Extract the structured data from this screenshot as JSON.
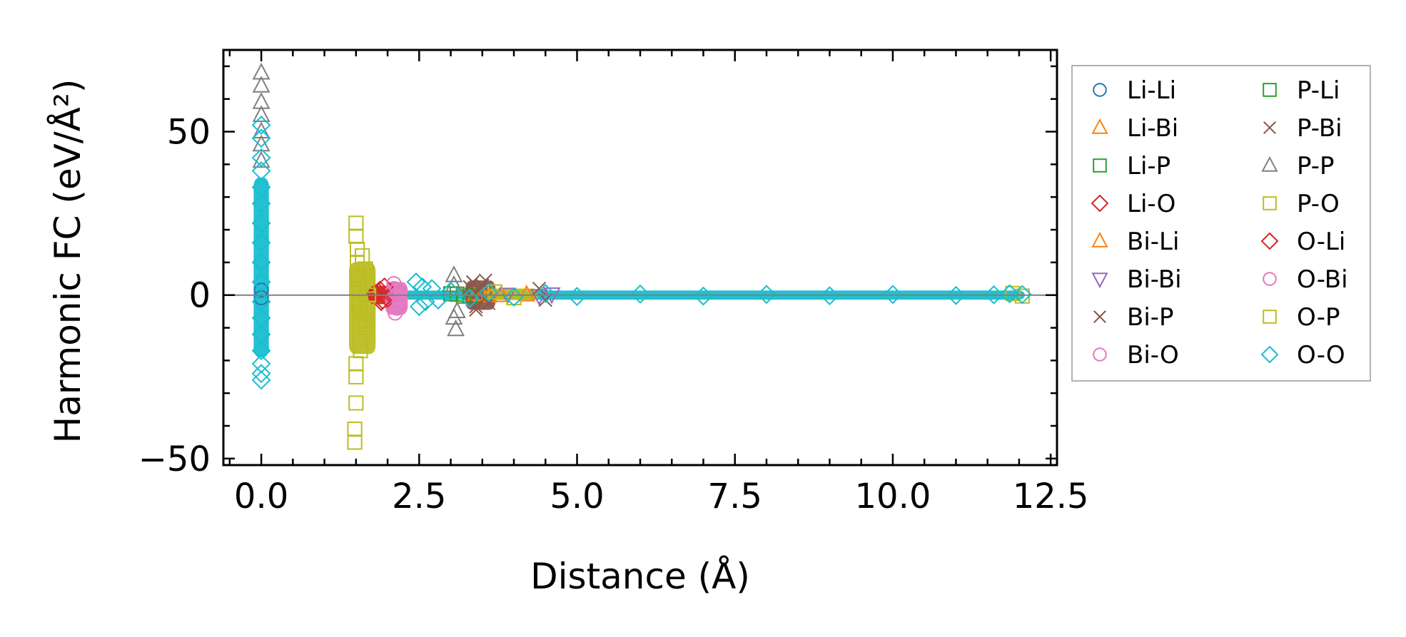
{
  "chart_data": {
    "type": "scatter",
    "title": "",
    "xlabel": "Distance (Å)",
    "ylabel": "Harmonic FC (eV/Å²)",
    "xlim": [
      -0.6,
      12.6
    ],
    "ylim": [
      -52,
      75
    ],
    "xticks": [
      0.0,
      2.5,
      5.0,
      7.5,
      10.0,
      12.5
    ],
    "xtick_labels": [
      "0.0",
      "2.5",
      "5.0",
      "7.5",
      "10.0",
      "12.5"
    ],
    "yticks": [
      -50,
      0,
      50
    ],
    "ytick_labels": [
      "−50",
      "0",
      "50"
    ],
    "grid": false,
    "zero_line": true,
    "legend_position": "outside-right",
    "series": [
      {
        "name": "Li-Li",
        "marker": "circle",
        "color": "#1f77b4",
        "points": [
          [
            0.0,
            1.5
          ],
          [
            0.0,
            -0.8
          ]
        ]
      },
      {
        "name": "Li-Bi",
        "marker": "triangle-up",
        "color": "#ff7f0e",
        "points": [
          [
            3.4,
            0.3
          ],
          [
            3.6,
            -0.2
          ],
          [
            4.2,
            0.1
          ]
        ]
      },
      {
        "name": "Li-P",
        "marker": "square",
        "color": "#2ca02c",
        "points": [
          [
            3.0,
            0.4
          ],
          [
            3.2,
            -0.3
          ]
        ]
      },
      {
        "name": "Li-O",
        "marker": "diamond",
        "color": "#d62728",
        "points": [
          [
            1.85,
            1.0
          ],
          [
            1.9,
            -2.0
          ],
          [
            1.95,
            2.5
          ],
          [
            2.0,
            -1.0
          ],
          [
            1.8,
            0.5
          ]
        ]
      },
      {
        "name": "Bi-Li",
        "marker": "triangle-up",
        "color": "#ff7f0e",
        "points": [
          [
            3.5,
            0.2
          ],
          [
            3.8,
            -0.1
          ]
        ]
      },
      {
        "name": "Bi-Bi",
        "marker": "triangle-down",
        "color": "#9467bd",
        "points": [
          [
            3.9,
            0.2
          ],
          [
            4.4,
            -0.2
          ],
          [
            4.6,
            0.3
          ]
        ]
      },
      {
        "name": "Bi-P",
        "marker": "x",
        "color": "#8c564b",
        "points": [
          [
            3.35,
            4.0
          ],
          [
            3.4,
            -4.5
          ],
          [
            3.5,
            3.0
          ],
          [
            3.6,
            -2.5
          ],
          [
            3.45,
            1.5
          ],
          [
            3.55,
            -1.0
          ],
          [
            4.4,
            2.0
          ],
          [
            4.5,
            -1.5
          ]
        ]
      },
      {
        "name": "Bi-O",
        "marker": "circle",
        "color": "#e377c2",
        "points": [
          [
            2.1,
            3.5
          ],
          [
            2.12,
            -5.5
          ],
          [
            2.15,
            1.5
          ],
          [
            2.18,
            -3.0
          ],
          [
            2.2,
            0.5
          ]
        ]
      },
      {
        "name": "P-Li",
        "marker": "square",
        "color": "#2ca02c",
        "points": [
          [
            3.1,
            0.3
          ],
          [
            3.3,
            -0.3
          ]
        ]
      },
      {
        "name": "P-Bi",
        "marker": "x",
        "color": "#8c564b",
        "points": [
          [
            3.3,
            2.5
          ],
          [
            3.4,
            -3.5
          ],
          [
            3.55,
            4.5
          ]
        ]
      },
      {
        "name": "P-P",
        "marker": "triangle-up",
        "color": "#7f7f7f",
        "points": [
          [
            0.0,
            68
          ],
          [
            0.0,
            64
          ],
          [
            0.0,
            59
          ],
          [
            0.0,
            55
          ],
          [
            0.0,
            50
          ],
          [
            0.0,
            46
          ],
          [
            0.0,
            41
          ],
          [
            3.05,
            6.0
          ],
          [
            3.05,
            3.0
          ],
          [
            3.05,
            -7.0
          ],
          [
            3.08,
            -10.5
          ],
          [
            3.1,
            -5.0
          ]
        ]
      },
      {
        "name": "P-O",
        "marker": "square",
        "color": "#bcbd22",
        "points": [
          [
            1.5,
            22
          ],
          [
            1.5,
            18
          ],
          [
            1.52,
            14
          ],
          [
            1.52,
            10
          ],
          [
            1.54,
            6
          ],
          [
            1.55,
            2
          ],
          [
            1.55,
            -3
          ],
          [
            1.56,
            -8
          ],
          [
            1.56,
            -13
          ],
          [
            1.57,
            -17
          ],
          [
            1.5,
            -21
          ],
          [
            1.5,
            -25
          ],
          [
            1.5,
            -33
          ],
          [
            1.48,
            -41
          ],
          [
            1.48,
            -45
          ],
          [
            1.6,
            12
          ],
          [
            1.62,
            6
          ],
          [
            1.62,
            -6
          ],
          [
            1.65,
            8
          ],
          [
            1.65,
            -10
          ],
          [
            1.68,
            3
          ],
          [
            1.68,
            -4
          ],
          [
            1.7,
            0
          ]
        ]
      },
      {
        "name": "O-Li",
        "marker": "diamond",
        "color": "#d62728",
        "points": [
          [
            1.88,
            1.5
          ],
          [
            1.92,
            -1.5
          ]
        ]
      },
      {
        "name": "O-Bi",
        "marker": "circle",
        "color": "#e377c2",
        "points": [
          [
            2.1,
            2.0
          ],
          [
            2.15,
            -4.0
          ]
        ]
      },
      {
        "name": "O-P",
        "marker": "square",
        "color": "#bcbd22",
        "points": [
          [
            1.53,
            5.0
          ],
          [
            1.57,
            -5.0
          ],
          [
            3.7,
            1.0
          ],
          [
            4.0,
            -0.8
          ],
          [
            11.9,
            0.5
          ],
          [
            12.05,
            -0.3
          ]
        ]
      },
      {
        "name": "O-O",
        "marker": "diamond",
        "color": "#17becf",
        "points": [
          [
            0.0,
            52
          ],
          [
            0.0,
            48
          ],
          [
            0.0,
            42
          ],
          [
            0.0,
            38
          ],
          [
            0.0,
            33
          ],
          [
            0.0,
            28
          ],
          [
            0.0,
            22
          ],
          [
            0.0,
            16
          ],
          [
            0.0,
            10
          ],
          [
            0.0,
            4
          ],
          [
            0.0,
            -2
          ],
          [
            0.0,
            -7
          ],
          [
            0.0,
            -12
          ],
          [
            0.0,
            -17
          ],
          [
            0.0,
            -21
          ],
          [
            0.0,
            -24
          ],
          [
            0.0,
            -26
          ],
          [
            2.45,
            4.0
          ],
          [
            2.5,
            -3.5
          ],
          [
            2.55,
            2.5
          ],
          [
            2.6,
            -2.0
          ],
          [
            2.7,
            2.0
          ],
          [
            2.8,
            -1.5
          ],
          [
            3.0,
            1.2
          ],
          [
            3.3,
            -1.0
          ],
          [
            3.6,
            0.8
          ],
          [
            4.0,
            -0.6
          ],
          [
            4.5,
            0.5
          ],
          [
            5.0,
            -0.4
          ],
          [
            6.0,
            0.3
          ],
          [
            7.0,
            -0.3
          ],
          [
            8.0,
            0.2
          ],
          [
            9.0,
            -0.2
          ],
          [
            10.0,
            0.2
          ],
          [
            11.0,
            -0.1
          ],
          [
            11.6,
            0.1
          ],
          [
            11.85,
            0.4
          ],
          [
            12.05,
            0.2
          ]
        ]
      }
    ],
    "bands": [
      {
        "series": "O-O",
        "x": [
          -0.03,
          0.03
        ],
        "y": [
          -19,
          36
        ]
      },
      {
        "series": "O-O",
        "x": [
          2.35,
          12.0
        ],
        "y": [
          -1.4,
          1.4
        ]
      },
      {
        "series": "P-O",
        "x": [
          1.48,
          1.72
        ],
        "y": [
          -18,
          10
        ]
      },
      {
        "series": "Li-O",
        "x": [
          1.78,
          2.0
        ],
        "y": [
          -2.8,
          2.8
        ]
      },
      {
        "series": "Bi-O",
        "x": [
          2.05,
          2.23
        ],
        "y": [
          -6,
          4
        ]
      },
      {
        "series": "Bi-P",
        "x": [
          3.32,
          3.62
        ],
        "y": [
          -4.5,
          4.5
        ]
      },
      {
        "series": "O-P",
        "x": [
          3.6,
          4.3
        ],
        "y": [
          -1.5,
          2.0
        ]
      }
    ]
  }
}
